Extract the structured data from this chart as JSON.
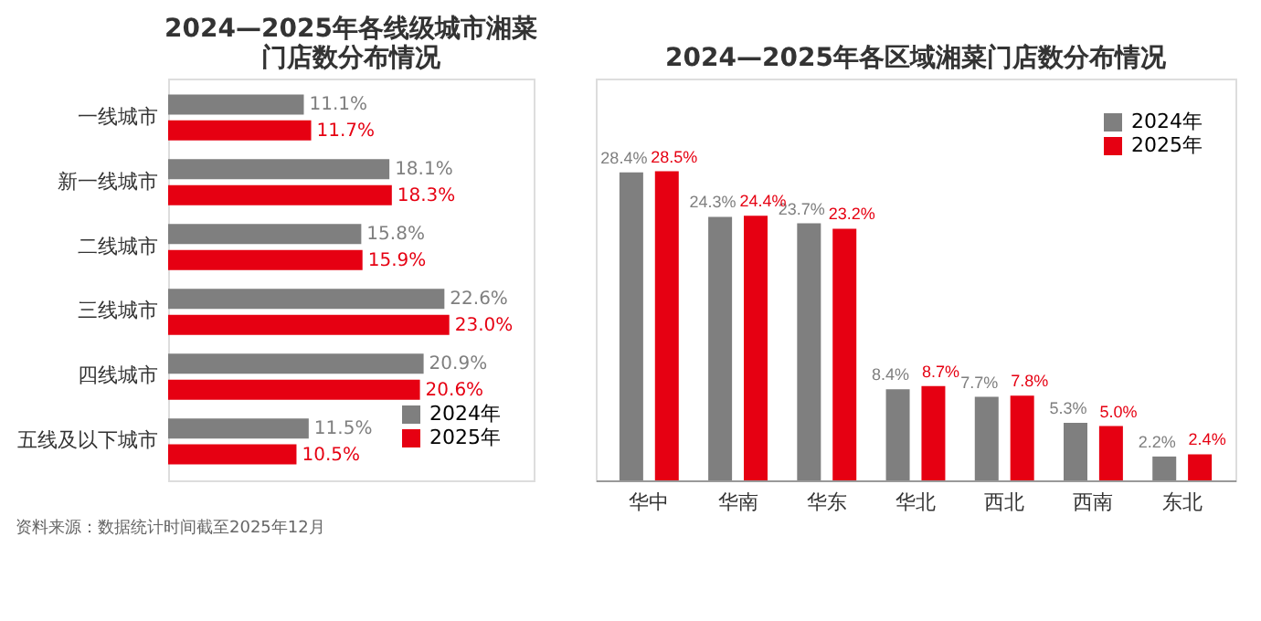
{
  "chart_data": [
    {
      "type": "bar",
      "orientation": "horizontal",
      "title": "2024—2025年各线级城市湘菜门店数分布情况",
      "categories": [
        "一线城市",
        "新一线城市",
        "二线城市",
        "三线城市",
        "四线城市",
        "五线及以下城市"
      ],
      "legend": "bottom right",
      "annotations": [
        "资料来源：数据统计时间截至2025年12月"
      ],
      "series": [
        {
          "name": "2024年",
          "color": "#7f7f7f",
          "values": [
            11.1,
            18.1,
            15.8,
            22.6,
            20.9,
            11.5
          ],
          "value_labels": [
            "11.1%",
            "18.1%",
            "15.8%",
            "22.6%",
            "20.9%",
            "11.5%"
          ]
        },
        {
          "name": "2025年",
          "color": "#e60012",
          "values": [
            11.7,
            18.3,
            15.9,
            23.0,
            20.6,
            10.5
          ],
          "value_labels": [
            "11.7%",
            "18.3%",
            "15.9%",
            "23.0%",
            "20.6%",
            "10.5%"
          ]
        }
      ]
    },
    {
      "type": "bar",
      "title": "2024—2025年各区域湘菜门店数分布情况",
      "categories": [
        "华中",
        "华南",
        "华东",
        "华北",
        "西北",
        "西南",
        "东北"
      ],
      "legend": "top right",
      "series": [
        {
          "name": "2024年",
          "color": "#7f7f7f",
          "values": [
            28.4,
            24.3,
            23.7,
            8.4,
            7.7,
            5.3,
            2.2
          ],
          "value_labels": [
            "28.4%",
            "24.3%",
            "23.7%",
            "8.4%",
            "7.7%",
            "5.3%",
            "2.2%"
          ]
        },
        {
          "name": "2025年",
          "color": "#e60012",
          "values": [
            28.5,
            24.4,
            23.2,
            8.7,
            7.8,
            5.0,
            2.4
          ],
          "value_labels": [
            "28.5%",
            "24.4%",
            "23.2%",
            "8.7%",
            "7.8%",
            "5.0%",
            "2.4%"
          ]
        }
      ]
    }
  ]
}
